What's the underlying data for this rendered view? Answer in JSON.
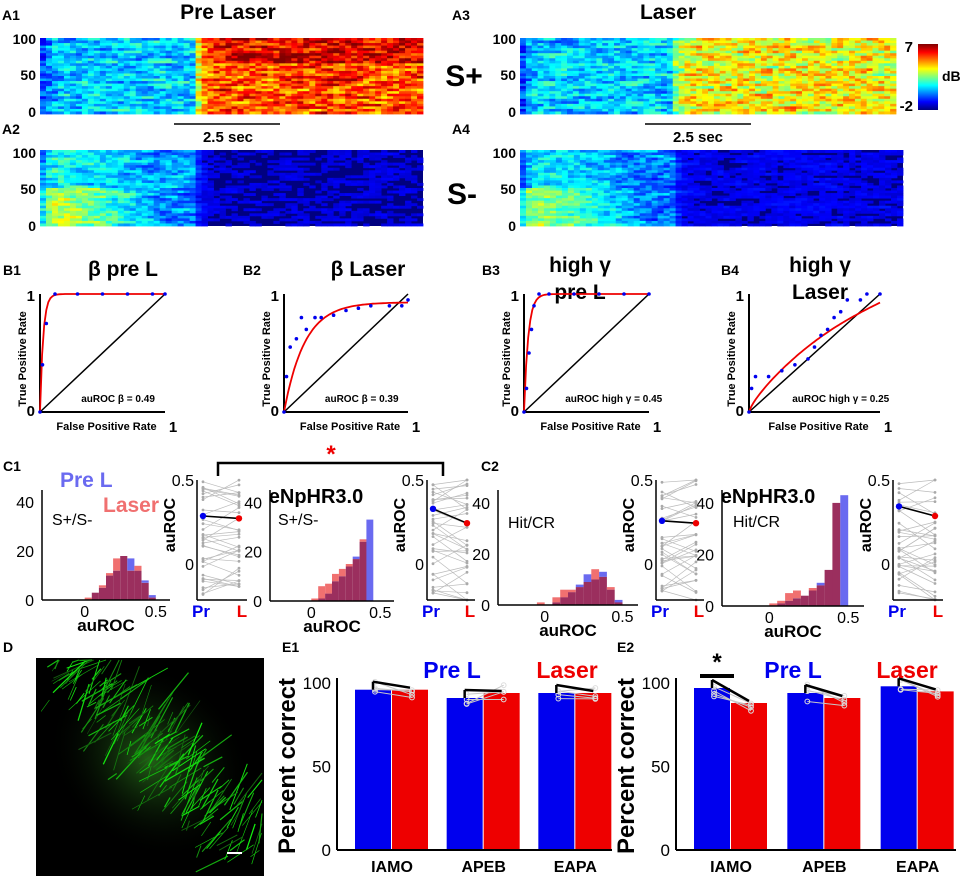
{
  "panel_labels": {
    "A1": "A1",
    "A2": "A2",
    "A3": "A3",
    "A4": "A4",
    "B1": "B1",
    "B2": "B2",
    "B3": "B3",
    "B4": "B4",
    "C1": "C1",
    "C2": "C2",
    "D": "D",
    "E1": "E1",
    "E2": "E2"
  },
  "colors": {
    "pre": "#0000ee",
    "laser": "#ee0000",
    "pre_hist": "#6a6af0",
    "laser_hist": "#f07070",
    "overlap": "#9b2f5e",
    "heat_bg": "#00007f",
    "line_gray": "#bbbbbb"
  },
  "chart_data": [
    {
      "id": "heatmaps",
      "type": "heatmap",
      "titles": {
        "pre": "Pre Laser",
        "laser": "Laser"
      },
      "row_labels": {
        "splus": "S+",
        "sminus": "S-"
      },
      "yticks": [
        "100",
        "50",
        "0"
      ],
      "scale_bar": "2.5 sec",
      "colorbar": {
        "max": "7",
        "min": "-2",
        "unit": "dB",
        "range": [
          -2,
          7
        ]
      },
      "panels": [
        {
          "id": "A1",
          "row": "S+",
          "condition": "Pre Laser",
          "stimulus_onset_frac": 0.4,
          "pre_level": 0.15,
          "post_level": 0.82
        },
        {
          "id": "A3",
          "row": "S+",
          "condition": "Laser",
          "stimulus_onset_frac": 0.4,
          "pre_level": 0.15,
          "post_level": 0.65
        },
        {
          "id": "A2",
          "row": "S-",
          "condition": "Pre Laser",
          "stimulus_onset_frac": 0.4,
          "pre_level": 0.12,
          "post_level": 0.02
        },
        {
          "id": "A4",
          "row": "S-",
          "condition": "Laser",
          "stimulus_onset_frac": 0.4,
          "pre_level": 0.1,
          "post_level": 0.04
        }
      ]
    },
    {
      "id": "roc",
      "type": "line",
      "xlabel": "False Positive Rate",
      "ylabel": "True Positive Rate",
      "tick_one": "1",
      "tick_zero": "0",
      "panels": [
        {
          "id": "B1",
          "title": [
            "β pre L"
          ],
          "auroc": "auROC β = 0.49",
          "points": [
            [
              0,
              0
            ],
            [
              0.02,
              0.4
            ],
            [
              0.05,
              0.75
            ],
            [
              0.12,
              1
            ],
            [
              0.3,
              1
            ],
            [
              0.5,
              1
            ],
            [
              0.7,
              1
            ],
            [
              0.9,
              1
            ],
            [
              1,
              1
            ]
          ],
          "fit_k": 40
        },
        {
          "id": "B2",
          "title": [
            "β Laser"
          ],
          "auroc": "auROC β = 0.39",
          "points": [
            [
              0,
              0
            ],
            [
              0.02,
              0.3
            ],
            [
              0.05,
              0.55
            ],
            [
              0.1,
              0.62
            ],
            [
              0.14,
              0.8
            ],
            [
              0.18,
              0.7
            ],
            [
              0.25,
              0.8
            ],
            [
              0.3,
              0.8
            ],
            [
              0.4,
              0.82
            ],
            [
              0.5,
              0.86
            ],
            [
              0.6,
              0.88
            ],
            [
              0.7,
              0.9
            ],
            [
              0.85,
              0.9
            ],
            [
              0.95,
              0.9
            ],
            [
              1,
              0.95
            ]
          ],
          "fit_k": 6
        },
        {
          "id": "B3",
          "title": [
            "high γ",
            "pre L"
          ],
          "auroc": "auROC high γ = 0.45",
          "points": [
            [
              0,
              0
            ],
            [
              0.02,
              0.2
            ],
            [
              0.04,
              0.5
            ],
            [
              0.06,
              0.7
            ],
            [
              0.08,
              0.9
            ],
            [
              0.12,
              1
            ],
            [
              0.2,
              1
            ],
            [
              0.4,
              1
            ],
            [
              0.6,
              1
            ],
            [
              0.8,
              1
            ],
            [
              1,
              1
            ]
          ],
          "fit_k": 30
        },
        {
          "id": "B4",
          "title": [
            "high γ",
            "Laser"
          ],
          "auroc": "auROC high γ = 0.25",
          "points": [
            [
              0,
              0
            ],
            [
              0.02,
              0.2
            ],
            [
              0.05,
              0.3
            ],
            [
              0.15,
              0.3
            ],
            [
              0.25,
              0.35
            ],
            [
              0.35,
              0.4
            ],
            [
              0.45,
              0.45
            ],
            [
              0.5,
              0.55
            ],
            [
              0.55,
              0.65
            ],
            [
              0.6,
              0.7
            ],
            [
              0.65,
              0.8
            ],
            [
              0.7,
              0.85
            ],
            [
              0.75,
              0.95
            ],
            [
              0.85,
              0.95
            ],
            [
              0.9,
              1
            ],
            [
              1,
              1
            ]
          ],
          "fit_k": -1
        }
      ]
    },
    {
      "id": "auroc_hist",
      "type": "bar",
      "xlabel": "auROC",
      "xticks": [
        "0",
        "0.5"
      ],
      "yticks": [
        "40",
        "20",
        "0"
      ],
      "xlim": [
        -0.3,
        0.6
      ],
      "ylim": [
        0,
        45
      ],
      "legend": {
        "pre": "Pre L",
        "laser": "Laser"
      },
      "group_titles": {
        "c1_enp": "eNpHR3.0",
        "c2_enp": "eNpHR3.0"
      },
      "significance": "*",
      "bin_starts": [
        -0.05,
        0,
        0.05,
        0.1,
        0.15,
        0.2,
        0.25,
        0.3,
        0.35,
        0.4,
        0.45
      ],
      "panels": [
        {
          "id": "C1a",
          "label": "S+/S-",
          "pre": [
            0,
            0,
            3,
            5,
            10,
            12,
            18,
            17,
            12,
            8,
            2
          ],
          "laser": [
            0,
            1,
            3,
            6,
            11,
            17,
            18,
            12,
            14,
            7,
            1
          ]
        },
        {
          "id": "C1b",
          "label": "S+/S-",
          "pre": [
            0,
            0,
            1,
            3,
            8,
            10,
            14,
            18,
            24,
            33,
            0
          ],
          "laser": [
            0,
            1,
            6,
            7,
            11,
            13,
            15,
            17,
            25,
            0,
            0
          ]
        },
        {
          "id": "C2a",
          "label": "Hit/CR",
          "pre": [
            0,
            0,
            1,
            3,
            5,
            8,
            12,
            10,
            13,
            6,
            2
          ],
          "laser": [
            1,
            0,
            3,
            6,
            6,
            7,
            9,
            14,
            11,
            7,
            1
          ]
        },
        {
          "id": "C2b",
          "label": "Hit/CR",
          "pre": [
            0,
            0,
            1,
            2,
            3,
            4,
            6,
            9,
            14,
            40,
            43
          ],
          "laser": [
            0,
            1,
            2,
            5,
            6,
            4,
            7,
            8,
            14,
            40,
            0
          ]
        }
      ]
    },
    {
      "id": "auroc_paired",
      "type": "line",
      "ylabel": "auROC",
      "yticks": [
        "0.5",
        "0"
      ],
      "xticks": [
        "Pr",
        "L"
      ],
      "ylim": [
        0,
        0.5
      ],
      "panels": [
        {
          "id": "C1a_p",
          "pre_mean": 0.35,
          "laser_mean": 0.34
        },
        {
          "id": "C1b_p",
          "pre_mean": 0.38,
          "laser_mean": 0.32
        },
        {
          "id": "C2a_p",
          "pre_mean": 0.33,
          "laser_mean": 0.32
        },
        {
          "id": "C2b_p",
          "pre_mean": 0.39,
          "laser_mean": 0.35
        }
      ]
    },
    {
      "id": "percent_correct",
      "type": "bar",
      "ylabel": "Percent correct",
      "ylim": [
        0,
        100
      ],
      "yticks": [
        "100",
        "50",
        "0"
      ],
      "categories": [
        "IAMO",
        "APEB",
        "EAPA"
      ],
      "legend": {
        "pre": "Pre L",
        "laser": "Laser"
      },
      "significance": "*",
      "panels": [
        {
          "id": "E1",
          "series": [
            {
              "name": "Pre L",
              "values": [
                96,
                91,
                94
              ]
            },
            {
              "name": "Laser",
              "values": [
                96,
                94,
                94
              ]
            }
          ]
        },
        {
          "id": "E2",
          "series": [
            {
              "name": "Pre L",
              "values": [
                97,
                94,
                98
              ]
            },
            {
              "name": "Laser",
              "values": [
                88,
                91,
                95
              ]
            }
          ]
        }
      ]
    }
  ]
}
